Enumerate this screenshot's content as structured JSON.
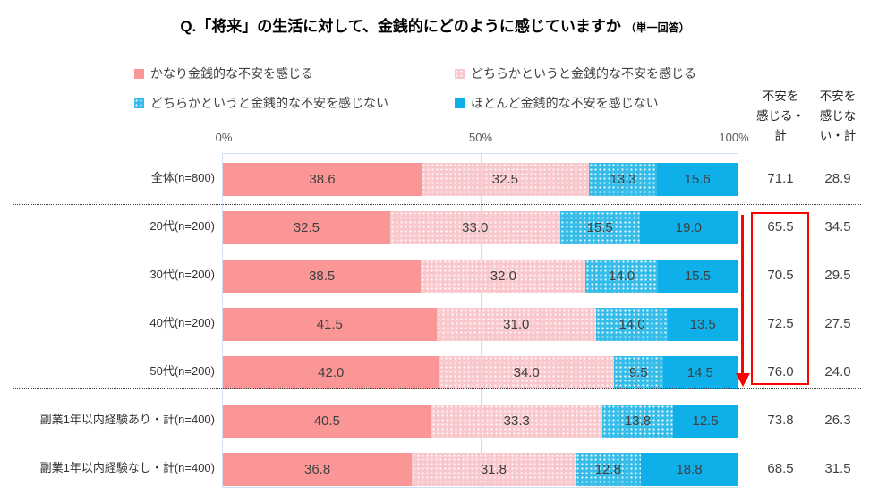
{
  "title": {
    "main": "Q.「将来」の生活に対して、金銭的にどのように感じていますか",
    "suffix": "（単一回答）"
  },
  "legend": {
    "items": [
      {
        "label": "かなり金銭的な不安を感じる",
        "swatch": "solid-pink"
      },
      {
        "label": "どちらかというと金銭的な不安を感じる",
        "swatch": "dotted-light-pink"
      },
      {
        "label": "どちらかというと金銭的な不安を感じない",
        "swatch": "dotted-light-blue"
      },
      {
        "label": "ほとんど金銭的な不安を感じない",
        "swatch": "solid-blue"
      }
    ]
  },
  "colors": {
    "cat1": "#FB9697",
    "cat2": "#F8C8CC",
    "cat3": "#35BCE8",
    "cat4": "#0FB0EA",
    "annotation_red": "#FF0000",
    "gridline": "#D9D9D9",
    "plot_border": "#D0DEEE"
  },
  "axis": {
    "ticks": [
      "0%",
      "50%",
      "100%"
    ]
  },
  "sum_columns": [
    {
      "header": "不安を\n感じる・\n計"
    },
    {
      "header": "不安を\n感じな\nい・計"
    }
  ],
  "rows": [
    {
      "label": "全体(n=800)",
      "values": [
        "38.6",
        "32.5",
        "13.3",
        "15.6"
      ],
      "sums": [
        "71.1",
        "28.9"
      ]
    },
    {
      "label": "20代(n=200)",
      "values": [
        "32.5",
        "33.0",
        "15.5",
        "19.0"
      ],
      "sums": [
        "65.5",
        "34.5"
      ]
    },
    {
      "label": "30代(n=200)",
      "values": [
        "38.5",
        "32.0",
        "14.0",
        "15.5"
      ],
      "sums": [
        "70.5",
        "29.5"
      ]
    },
    {
      "label": "40代(n=200)",
      "values": [
        "41.5",
        "31.0",
        "14.0",
        "13.5"
      ],
      "sums": [
        "72.5",
        "27.5"
      ]
    },
    {
      "label": "50代(n=200)",
      "values": [
        "42.0",
        "34.0",
        "9.5",
        "14.5"
      ],
      "sums": [
        "76.0",
        "24.0"
      ]
    },
    {
      "label": "副業1年以内経験あり・計(n=400)",
      "values": [
        "40.5",
        "33.3",
        "13.8",
        "12.5"
      ],
      "sums": [
        "73.8",
        "26.3"
      ]
    },
    {
      "label": "副業1年以内経験なし・計(n=400)",
      "values": [
        "36.8",
        "31.8",
        "12.8",
        "18.8"
      ],
      "sums": [
        "68.5",
        "31.5"
      ]
    }
  ],
  "chart_data": {
    "type": "bar",
    "orientation": "horizontal",
    "stacked": true,
    "title": "Q.「将来」の生活に対して、金銭的にどのように感じていますか（単一回答）",
    "categories": [
      "全体(n=800)",
      "20代(n=200)",
      "30代(n=200)",
      "40代(n=200)",
      "50代(n=200)",
      "副業1年以内経験あり・計(n=400)",
      "副業1年以内経験なし・計(n=400)"
    ],
    "series": [
      {
        "name": "かなり金銭的な不安を感じる",
        "values": [
          38.6,
          32.5,
          38.5,
          41.5,
          42.0,
          40.5,
          36.8
        ]
      },
      {
        "name": "どちらかというと金銭的な不安を感じる",
        "values": [
          32.5,
          33.0,
          32.0,
          31.0,
          34.0,
          33.3,
          31.8
        ]
      },
      {
        "name": "どちらかというと金銭的な不安を感じない",
        "values": [
          13.3,
          15.5,
          14.0,
          14.0,
          9.5,
          13.8,
          12.8
        ]
      },
      {
        "name": "ほとんど金銭的な不安を感じない",
        "values": [
          15.6,
          19.0,
          15.5,
          13.5,
          14.5,
          12.5,
          18.8
        ]
      }
    ],
    "totals": [
      {
        "name": "不安を感じる・計",
        "values": [
          71.1,
          65.5,
          70.5,
          72.5,
          76.0,
          73.8,
          68.5
        ]
      },
      {
        "name": "不安を感じない・計",
        "values": [
          28.9,
          34.5,
          29.5,
          27.5,
          24.0,
          26.3,
          31.5
        ]
      }
    ],
    "xlim": [
      0,
      100
    ],
    "x_ticks": [
      "0%",
      "50%",
      "100%"
    ],
    "legend_position": "top",
    "annotations": [
      "red rectangle highlighting 不安を感じる・計 values for 20代〜50代 rows",
      "red downward arrow beside the age-group rows (20代 → 50代)"
    ]
  }
}
